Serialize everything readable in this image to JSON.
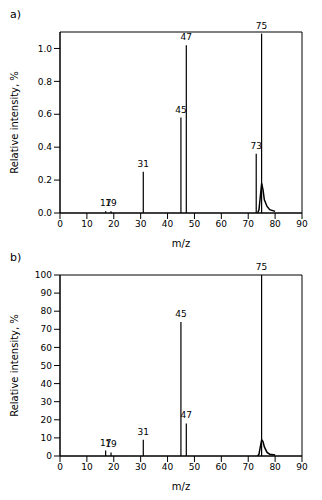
{
  "chart_data": [
    {
      "type": "stick",
      "title": "a)",
      "x_label": "m/z",
      "y_label": "Relative intensity, %",
      "xlim": [
        0,
        90
      ],
      "xticks": [
        0,
        10,
        20,
        30,
        40,
        50,
        60,
        70,
        80,
        90
      ],
      "ylim": [
        0,
        1.1
      ],
      "yticks": [
        {
          "value": 0,
          "label": "0.0"
        },
        {
          "value": 0.2,
          "label": "0.2"
        },
        {
          "value": 0.4,
          "label": "0.4"
        },
        {
          "value": 0.6,
          "label": "0.6"
        },
        {
          "value": 0.8,
          "label": "0.8"
        },
        {
          "value": 1,
          "label": "1.0"
        }
      ],
      "grid": false,
      "color": "#000000",
      "series": [
        {
          "type": "bar",
          "x": [
            17,
            19,
            31,
            45,
            47,
            73,
            75
          ],
          "values": [
            0.01,
            0.01,
            0.25,
            0.58,
            1.02,
            0.36,
            1.09
          ]
        },
        {
          "type": "line",
          "x": [
            73.5,
            74,
            74.5,
            75,
            75.5,
            76,
            77,
            78,
            80
          ],
          "values": [
            0.0,
            0.02,
            0.1,
            0.18,
            0.14,
            0.08,
            0.04,
            0.02,
            0.01
          ]
        }
      ],
      "annotations": [
        {
          "x": 17,
          "text": "17"
        },
        {
          "x": 19,
          "text": "19"
        },
        {
          "x": 31,
          "text": "31"
        },
        {
          "x": 45,
          "text": "45"
        },
        {
          "x": 47,
          "text": "47"
        },
        {
          "x": 73,
          "text": "73"
        },
        {
          "x": 75,
          "text": "75"
        }
      ]
    },
    {
      "type": "stick",
      "title": "b)",
      "x_label": "m/z",
      "y_label": "Relative intensity, %",
      "xlim": [
        0,
        90
      ],
      "xticks": [
        0,
        10,
        20,
        30,
        40,
        50,
        60,
        70,
        80,
        90
      ],
      "ylim": [
        0,
        100
      ],
      "yticks": [
        0,
        10,
        20,
        30,
        40,
        50,
        60,
        70,
        80,
        90,
        100
      ],
      "grid": false,
      "color": "#000000",
      "series": [
        {
          "type": "bar",
          "x": [
            17,
            19,
            31,
            45,
            47,
            75
          ],
          "values": [
            3,
            2,
            9,
            74,
            18,
            100
          ]
        },
        {
          "type": "line",
          "x": [
            73.5,
            74,
            74.5,
            75,
            75.5,
            76,
            77,
            78,
            80
          ],
          "values": [
            0,
            1,
            5,
            9,
            8,
            5,
            2,
            1,
            0.5
          ]
        }
      ],
      "annotations": [
        {
          "x": 17,
          "text": "17"
        },
        {
          "x": 19,
          "text": "19"
        },
        {
          "x": 31,
          "text": "31"
        },
        {
          "x": 45,
          "text": "45"
        },
        {
          "x": 47,
          "text": "47"
        },
        {
          "x": 75,
          "text": "75"
        }
      ]
    }
  ]
}
